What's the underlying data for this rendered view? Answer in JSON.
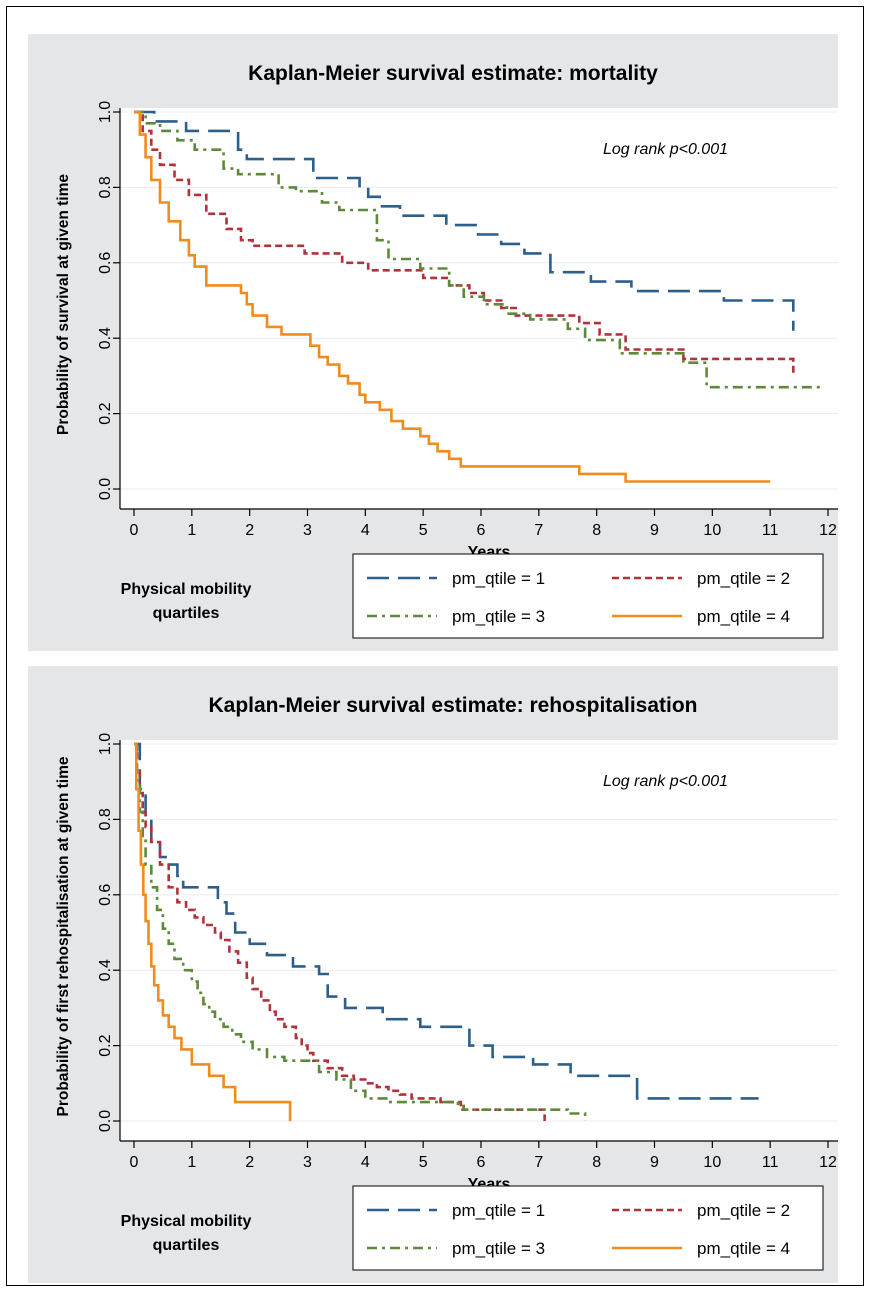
{
  "chart_data": [
    {
      "type": "line",
      "title": "Kaplan-Meier survival estimate: mortality",
      "xlabel": "Years",
      "ylabel": "Probability of survival at given time",
      "xlim": [
        0,
        12
      ],
      "ylim": [
        0,
        1
      ],
      "xticks": [
        "0",
        "1",
        "2",
        "3",
        "4",
        "5",
        "6",
        "7",
        "8",
        "9",
        "10",
        "11",
        "12"
      ],
      "yticks": [
        "0.0",
        "0.2",
        "0.4",
        "0.6",
        "0.8",
        "1.0"
      ],
      "annotation": "Log rank p<0.001",
      "grid": true,
      "legend_position": "bottom",
      "legend_title": [
        "Physical mobility",
        "quartiles"
      ],
      "series": [
        {
          "name": "pm_qtile = 1",
          "color": "#2c5f8a",
          "dash": "long-dash",
          "x": [
            0,
            0.35,
            0.9,
            1.8,
            1.95,
            3.1,
            3.9,
            4.05,
            4.25,
            4.6,
            5.4,
            5.95,
            6.35,
            6.75,
            7.2,
            7.9,
            8.6,
            10.2,
            11.4
          ],
          "y": [
            1.0,
            0.975,
            0.95,
            0.9,
            0.875,
            0.825,
            0.8,
            0.775,
            0.75,
            0.725,
            0.7,
            0.675,
            0.65,
            0.625,
            0.575,
            0.55,
            0.525,
            0.5,
            0.42
          ]
        },
        {
          "name": "pm_qtile = 2",
          "color": "#b0323c",
          "dash": "short-dash",
          "x": [
            0,
            0.15,
            0.3,
            0.45,
            0.7,
            0.95,
            1.25,
            1.6,
            1.85,
            2.05,
            2.95,
            3.6,
            4.05,
            5.0,
            5.45,
            5.8,
            6.05,
            6.35,
            6.6,
            7.7,
            8.05,
            8.5,
            9.5,
            11.4
          ],
          "y": [
            1.0,
            0.95,
            0.9,
            0.86,
            0.82,
            0.78,
            0.73,
            0.69,
            0.66,
            0.645,
            0.625,
            0.6,
            0.58,
            0.56,
            0.54,
            0.52,
            0.5,
            0.48,
            0.46,
            0.44,
            0.41,
            0.37,
            0.345,
            0.3
          ]
        },
        {
          "name": "pm_qtile = 3",
          "color": "#5d8a3a",
          "dash": "dash-dot",
          "x": [
            0,
            0.2,
            0.45,
            0.75,
            1.05,
            1.55,
            1.8,
            2.5,
            2.8,
            3.25,
            3.55,
            4.2,
            4.4,
            4.95,
            5.45,
            5.7,
            6.05,
            6.45,
            6.85,
            7.5,
            7.8,
            8.4,
            9.5,
            9.9,
            11.9
          ],
          "y": [
            1.0,
            0.97,
            0.95,
            0.925,
            0.9,
            0.85,
            0.835,
            0.8,
            0.79,
            0.76,
            0.74,
            0.66,
            0.61,
            0.585,
            0.54,
            0.51,
            0.49,
            0.465,
            0.45,
            0.425,
            0.395,
            0.36,
            0.335,
            0.27,
            0.27
          ]
        },
        {
          "name": "pm_qtile = 4",
          "color": "#f08c1e",
          "dash": "solid",
          "x": [
            0,
            0.1,
            0.2,
            0.3,
            0.45,
            0.6,
            0.8,
            0.95,
            1.05,
            1.25,
            1.85,
            1.95,
            2.05,
            2.3,
            2.55,
            3.05,
            3.2,
            3.35,
            3.55,
            3.7,
            3.9,
            4.0,
            4.25,
            4.45,
            4.65,
            4.95,
            5.1,
            5.25,
            5.45,
            5.65,
            7.7,
            8.5,
            11.0
          ],
          "y": [
            1.0,
            0.94,
            0.88,
            0.82,
            0.76,
            0.71,
            0.66,
            0.62,
            0.59,
            0.54,
            0.52,
            0.49,
            0.46,
            0.43,
            0.41,
            0.38,
            0.35,
            0.33,
            0.3,
            0.28,
            0.25,
            0.23,
            0.21,
            0.18,
            0.16,
            0.14,
            0.12,
            0.1,
            0.08,
            0.06,
            0.04,
            0.02,
            0.02
          ]
        }
      ]
    },
    {
      "type": "line",
      "title": "Kaplan-Meier survival estimate: rehospitalisation",
      "xlabel": "Years",
      "ylabel": "Probability of first rehospitalisation at given time",
      "xlim": [
        0,
        12
      ],
      "ylim": [
        0,
        1
      ],
      "xticks": [
        "0",
        "1",
        "2",
        "3",
        "4",
        "5",
        "6",
        "7",
        "8",
        "9",
        "10",
        "11",
        "12"
      ],
      "yticks": [
        "0.0",
        "0.2",
        "0.4",
        "0.6",
        "0.8",
        "1.0"
      ],
      "annotation": "Log rank p<0.001",
      "grid": true,
      "legend_position": "bottom",
      "legend_title": [
        "Physical mobility",
        "quartiles"
      ],
      "series": [
        {
          "name": "pm_qtile = 1",
          "color": "#2c5f8a",
          "dash": "long-dash",
          "x": [
            0,
            0.1,
            0.2,
            0.3,
            0.45,
            0.6,
            0.75,
            0.85,
            1.45,
            1.6,
            1.75,
            2.0,
            2.3,
            2.75,
            3.2,
            3.35,
            3.65,
            4.3,
            4.95,
            5.8,
            6.2,
            6.9,
            7.55,
            8.7,
            10.8
          ],
          "y": [
            1.0,
            0.88,
            0.8,
            0.74,
            0.7,
            0.68,
            0.65,
            0.62,
            0.58,
            0.55,
            0.5,
            0.47,
            0.44,
            0.41,
            0.39,
            0.33,
            0.3,
            0.27,
            0.25,
            0.2,
            0.17,
            0.15,
            0.12,
            0.06,
            0.06
          ]
        },
        {
          "name": "pm_qtile = 2",
          "color": "#b0323c",
          "dash": "short-dash",
          "x": [
            0,
            0.05,
            0.1,
            0.15,
            0.2,
            0.3,
            0.45,
            0.6,
            0.75,
            0.9,
            1.05,
            1.2,
            1.4,
            1.5,
            1.65,
            1.8,
            1.95,
            2.05,
            2.2,
            2.35,
            2.45,
            2.6,
            2.8,
            2.9,
            3.0,
            3.1,
            3.35,
            3.6,
            3.8,
            4.0,
            4.2,
            4.4,
            4.6,
            4.8,
            5.3,
            5.65,
            7.1
          ],
          "y": [
            1.0,
            0.93,
            0.87,
            0.82,
            0.78,
            0.74,
            0.68,
            0.62,
            0.58,
            0.56,
            0.54,
            0.52,
            0.5,
            0.48,
            0.45,
            0.42,
            0.38,
            0.35,
            0.32,
            0.29,
            0.27,
            0.25,
            0.22,
            0.2,
            0.18,
            0.16,
            0.14,
            0.12,
            0.11,
            0.1,
            0.09,
            0.08,
            0.07,
            0.06,
            0.05,
            0.03,
            0.0
          ]
        },
        {
          "name": "pm_qtile = 3",
          "color": "#5d8a3a",
          "dash": "dash-dot",
          "x": [
            0,
            0.05,
            0.1,
            0.15,
            0.2,
            0.3,
            0.4,
            0.5,
            0.6,
            0.7,
            0.85,
            1.0,
            1.1,
            1.2,
            1.3,
            1.4,
            1.55,
            1.7,
            1.85,
            2.05,
            2.3,
            2.6,
            2.9,
            3.2,
            3.5,
            3.75,
            4.0,
            4.4,
            5.6,
            5.7,
            7.0,
            7.5,
            7.8
          ],
          "y": [
            1.0,
            0.9,
            0.82,
            0.75,
            0.68,
            0.62,
            0.56,
            0.51,
            0.47,
            0.43,
            0.4,
            0.37,
            0.34,
            0.31,
            0.29,
            0.27,
            0.25,
            0.23,
            0.21,
            0.19,
            0.17,
            0.16,
            0.16,
            0.13,
            0.11,
            0.08,
            0.06,
            0.05,
            0.04,
            0.03,
            0.03,
            0.02,
            0.0
          ]
        },
        {
          "name": "pm_qtile = 4",
          "color": "#f08c1e",
          "dash": "solid",
          "x": [
            0,
            0.04,
            0.08,
            0.12,
            0.16,
            0.2,
            0.25,
            0.3,
            0.35,
            0.42,
            0.5,
            0.6,
            0.7,
            0.82,
            1.0,
            1.3,
            1.55,
            1.75,
            2.7
          ],
          "y": [
            1.0,
            0.88,
            0.77,
            0.68,
            0.6,
            0.53,
            0.47,
            0.41,
            0.36,
            0.32,
            0.28,
            0.25,
            0.22,
            0.19,
            0.15,
            0.12,
            0.09,
            0.05,
            0.0
          ]
        }
      ]
    }
  ]
}
